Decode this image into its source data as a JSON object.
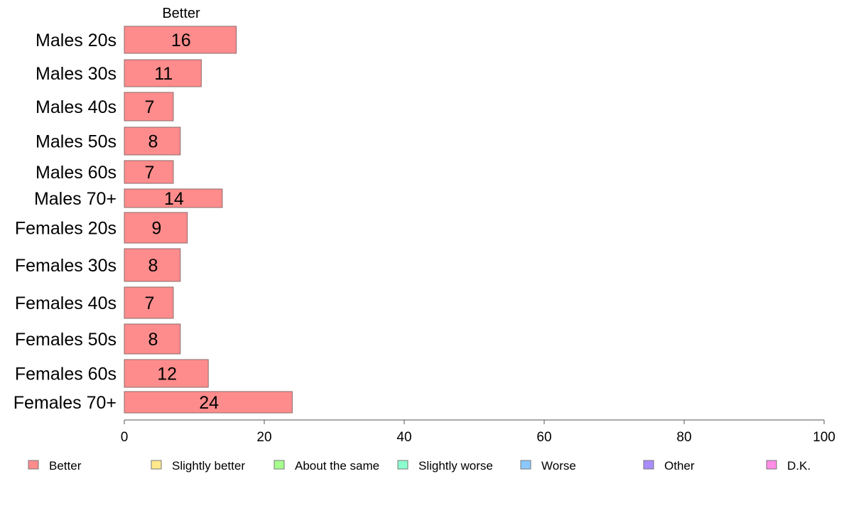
{
  "chart_data": {
    "type": "bar",
    "orientation": "horizontal",
    "stacked": true,
    "panel_title": "Better",
    "categories": [
      "Males 20s",
      "Males 30s",
      "Males 40s",
      "Males 50s",
      "Males 60s",
      "Males 70+",
      "Females 20s",
      "Females 30s",
      "Females 40s",
      "Females 50s",
      "Females 60s",
      "Females 70+"
    ],
    "series": [
      {
        "name": "Better",
        "color": "#ff8c8c",
        "values": [
          16,
          11,
          7,
          8,
          7,
          14,
          9,
          8,
          7,
          8,
          12,
          24
        ]
      }
    ],
    "legend": [
      {
        "name": "Better",
        "color": "#ff8c8c"
      },
      {
        "name": "Slightly better",
        "color": "#ffe98c"
      },
      {
        "name": "About the same",
        "color": "#a6ff8c"
      },
      {
        "name": "Slightly worse",
        "color": "#8cffce"
      },
      {
        "name": "Worse",
        "color": "#8cc8ff"
      },
      {
        "name": "Other",
        "color": "#a98cff"
      },
      {
        "name": "D.K.",
        "color": "#ff8ce6"
      }
    ],
    "xlim": [
      0,
      100
    ],
    "xticks": [
      0,
      20,
      40,
      60,
      80,
      100
    ],
    "legend_position": "bottom",
    "grid": false
  }
}
